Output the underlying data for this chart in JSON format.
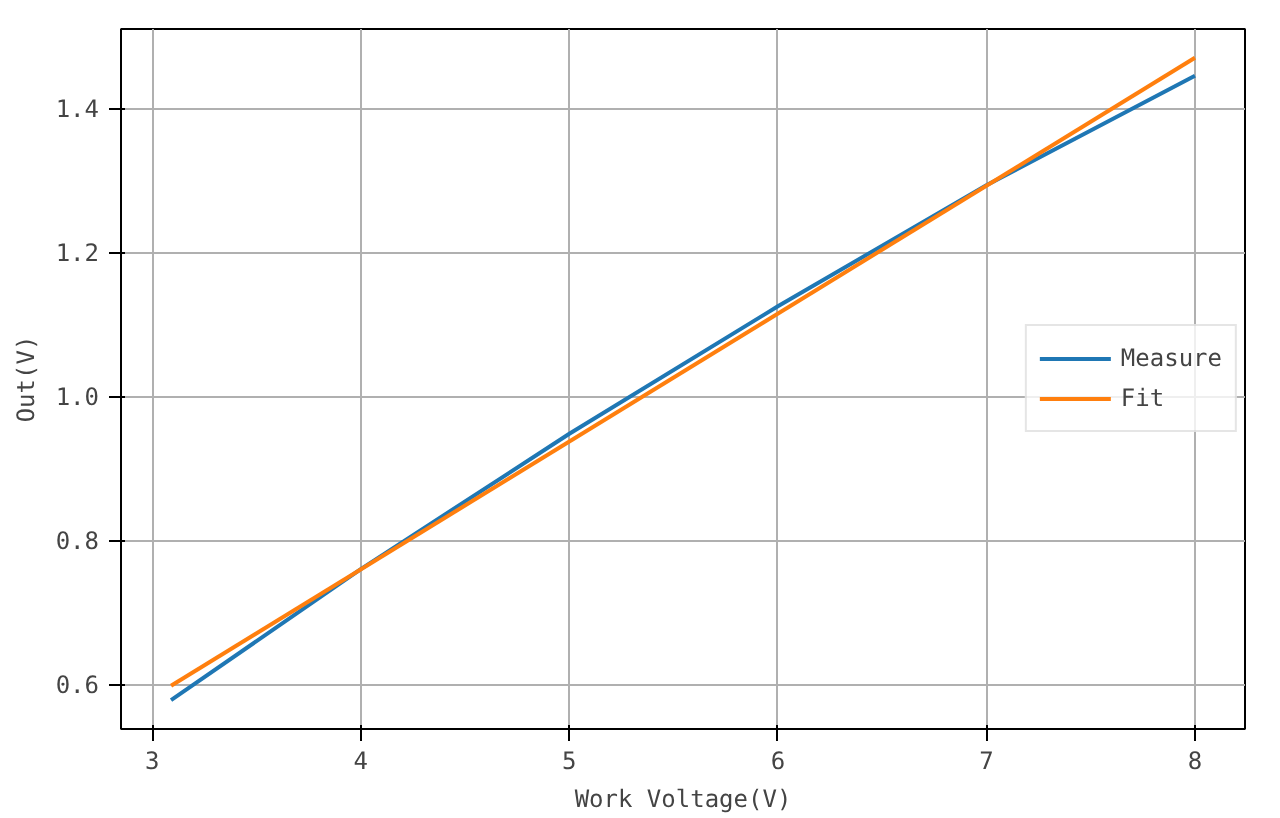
{
  "chart_data": {
    "type": "line",
    "xlabel": "Work Voltage(V)",
    "ylabel": "Out(V)",
    "series": [
      {
        "name": "Measure",
        "color": "#1f77b4",
        "x": [
          3.09,
          4,
          5,
          6,
          7,
          8
        ],
        "values": [
          0.578,
          0.76,
          0.948,
          1.125,
          1.293,
          1.445
        ]
      },
      {
        "name": "Fit",
        "color": "#ff7f0e",
        "x": [
          3.09,
          8
        ],
        "values": [
          0.598,
          1.47
        ]
      }
    ],
    "xlim": [
      2.85,
      8.24
    ],
    "xticks": [
      3,
      4,
      5,
      6,
      7,
      8
    ],
    "ylim": [
      0.538,
      1.51
    ],
    "yticks": [
      {
        "value": 0.6,
        "label": "0.6"
      },
      {
        "value": 0.8,
        "label": "0.8"
      },
      {
        "value": 1.0,
        "label": "1.0"
      },
      {
        "value": 1.2,
        "label": "1.2"
      },
      {
        "value": 1.4,
        "label": "1.4"
      }
    ],
    "grid": true,
    "legend": "right",
    "marker": "none",
    "line_style": "solid"
  }
}
